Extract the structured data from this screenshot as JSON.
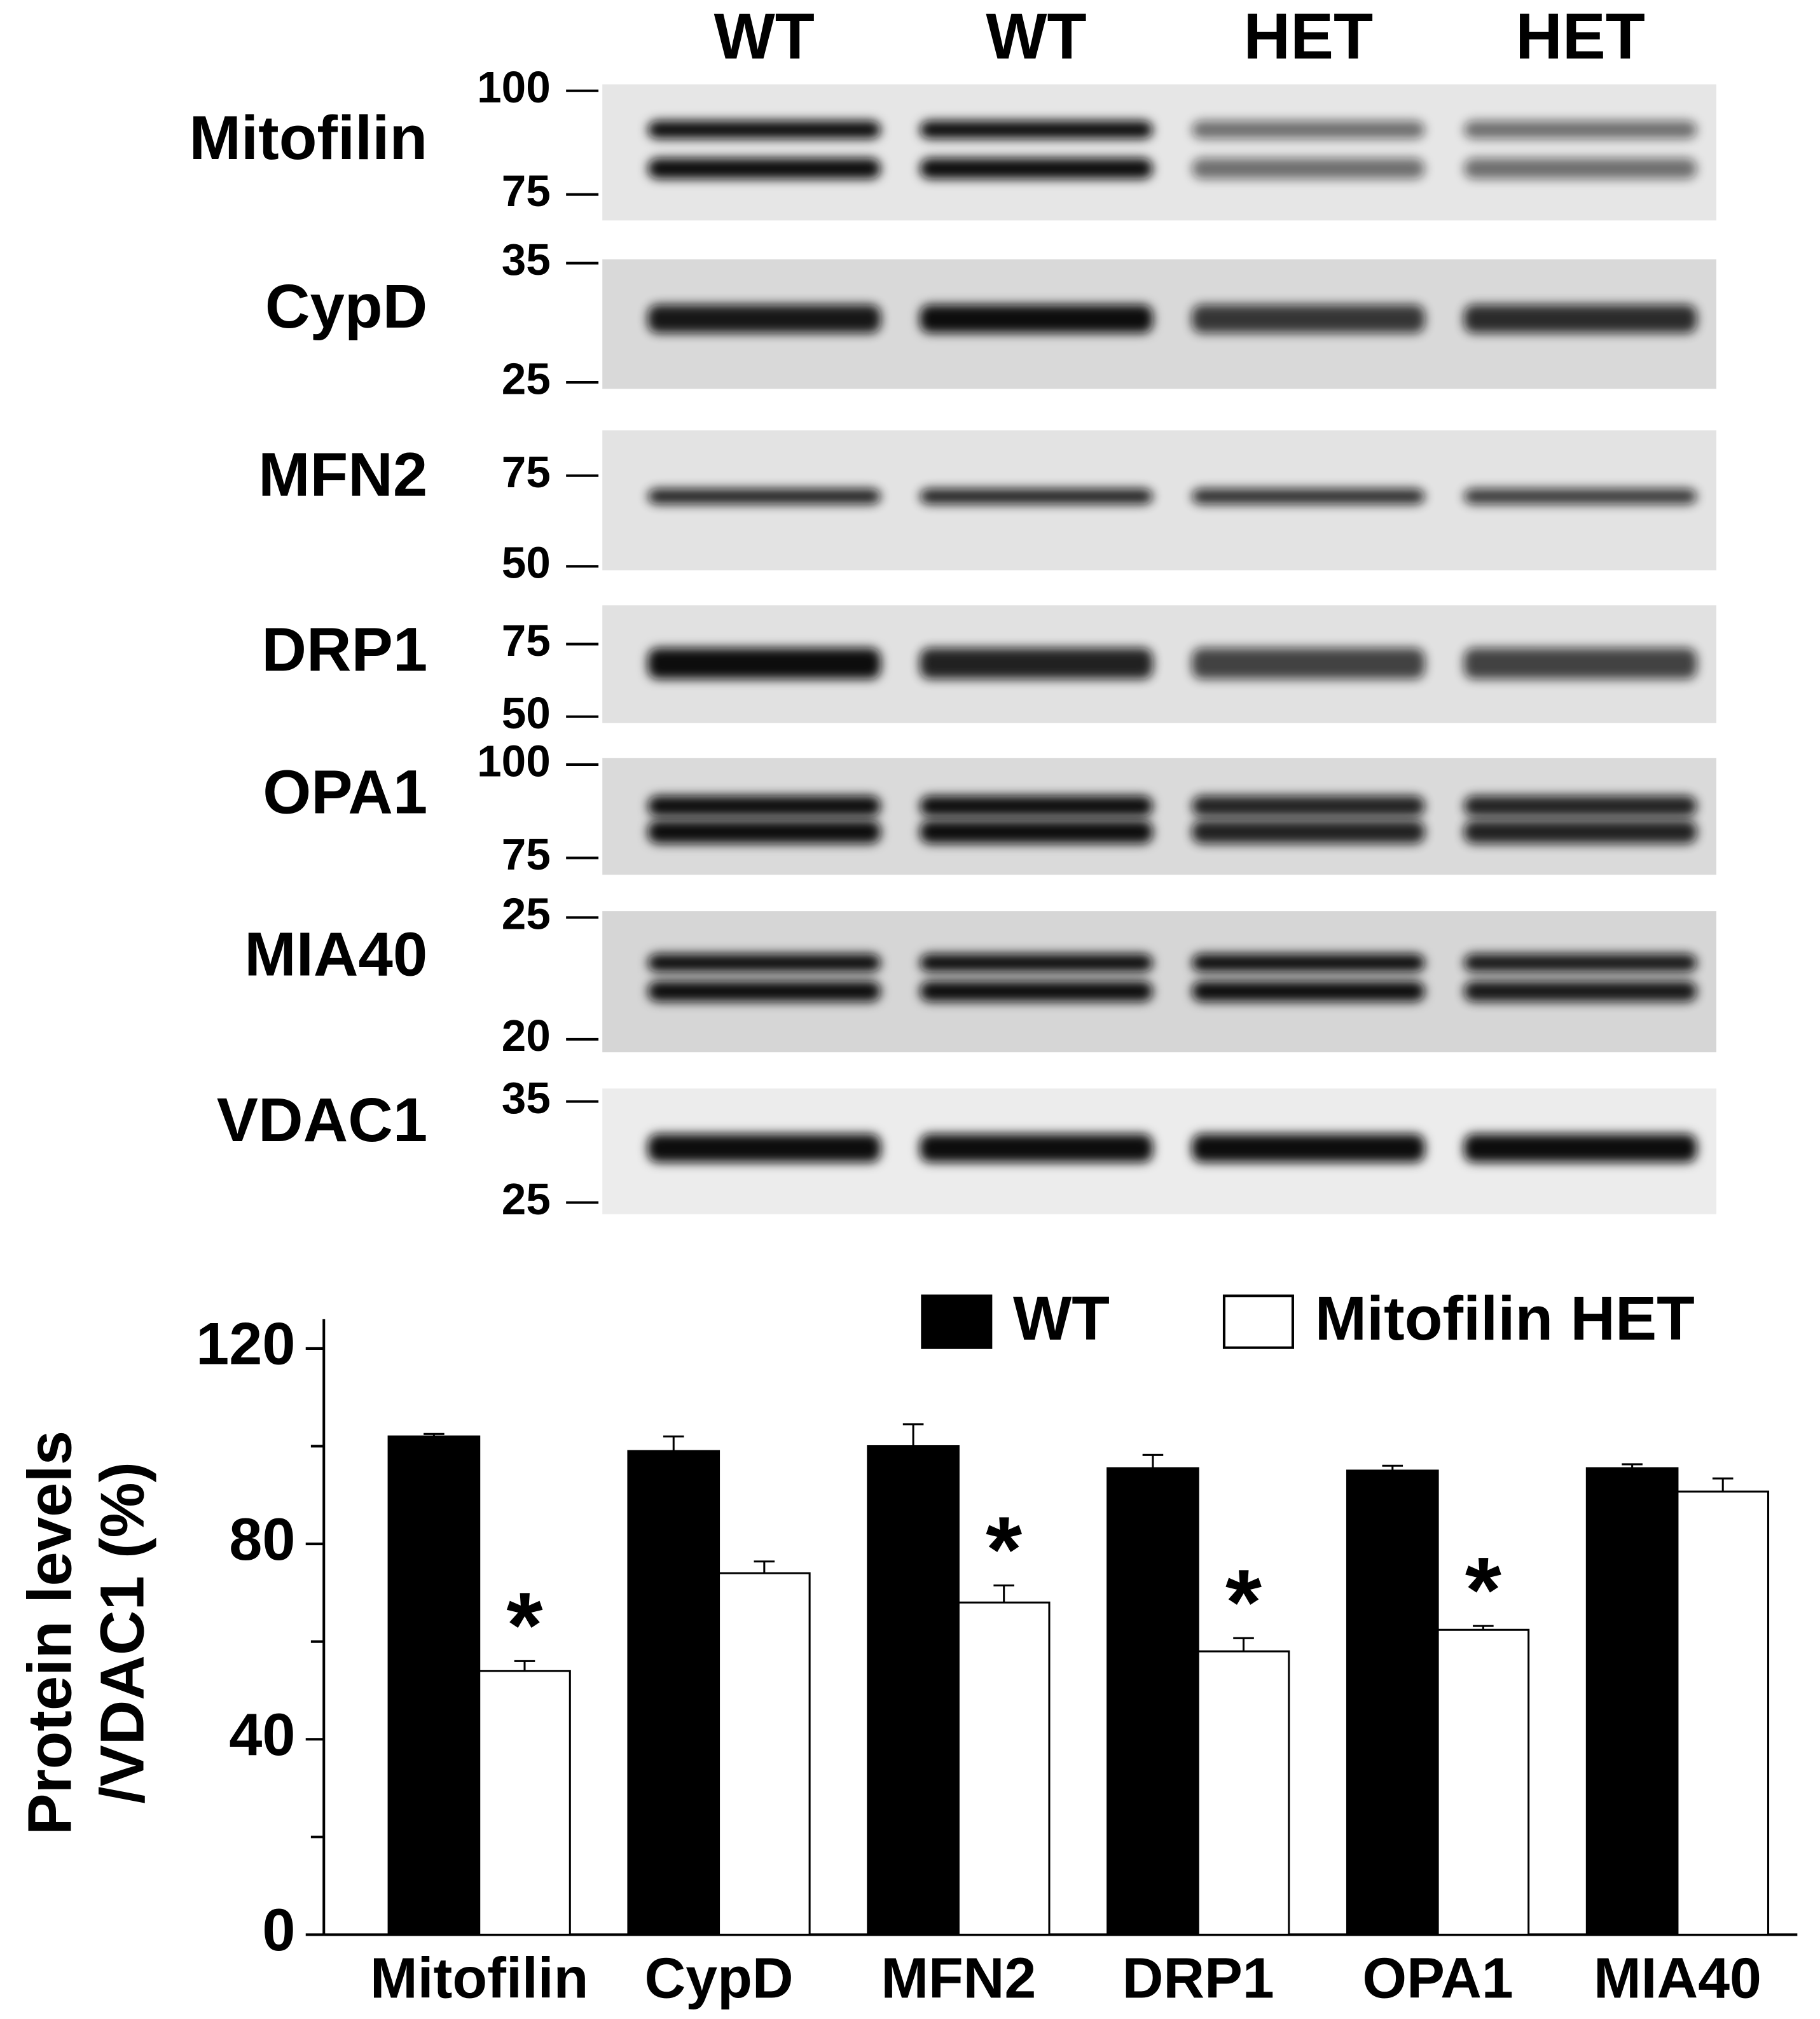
{
  "blot": {
    "lanes": [
      "WT",
      "WT",
      "HET",
      "HET"
    ],
    "rows": [
      {
        "protein": "Mitofilin",
        "markers": [
          "100",
          "75"
        ]
      },
      {
        "protein": "CypD",
        "markers": [
          "35",
          "25"
        ]
      },
      {
        "protein": "MFN2",
        "markers": [
          "75",
          "50"
        ]
      },
      {
        "protein": "DRP1",
        "markers": [
          "75",
          "50"
        ]
      },
      {
        "protein": "OPA1",
        "markers": [
          "100",
          "75"
        ]
      },
      {
        "protein": "MIA40",
        "markers": [
          "25",
          "20"
        ]
      },
      {
        "protein": "VDAC1",
        "markers": [
          "35",
          "25"
        ]
      }
    ]
  },
  "chart_data": {
    "type": "bar",
    "ylabel": [
      "Protein levels",
      "/VDAC1 (%)"
    ],
    "categories": [
      "Mitofilin",
      "CypD",
      "MFN2",
      "DRP1",
      "OPA1",
      "MIA40"
    ],
    "series": [
      {
        "name": "WT",
        "color": "#000000",
        "values": [
          102,
          99,
          100,
          95.5,
          95,
          95.5
        ],
        "errors": [
          0.5,
          3,
          4.5,
          2.7,
          1,
          0.8
        ]
      },
      {
        "name": "Mitofilin HET",
        "color": "#ffffff",
        "values": [
          54,
          74,
          68,
          58,
          62.4,
          90.7
        ],
        "errors": [
          2,
          2.4,
          3.5,
          2.7,
          0.8,
          2.7
        ],
        "significance": [
          "*",
          null,
          "*",
          "*",
          "*",
          null
        ]
      }
    ],
    "ylim": [
      0,
      126
    ],
    "yticks": [
      0,
      40,
      80,
      120
    ],
    "minor_yticks": [
      20,
      60,
      100
    ],
    "legend": "top-right"
  }
}
